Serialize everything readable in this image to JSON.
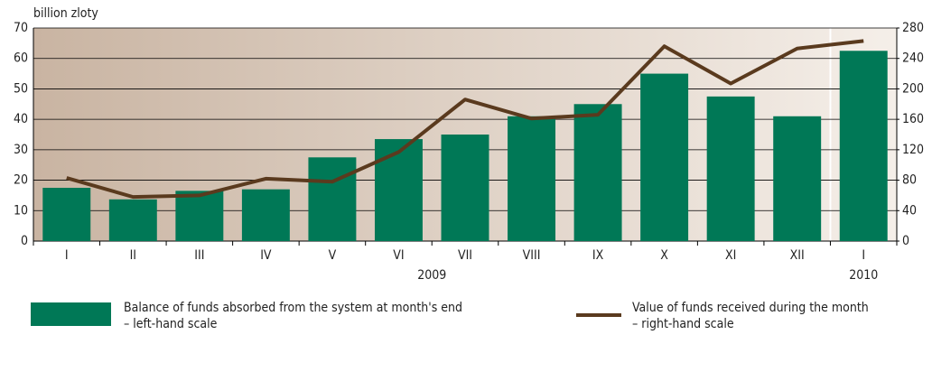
{
  "chart_data": {
    "type": "bar_line",
    "y_axis_label": "billion zloty",
    "categories": [
      "I",
      "II",
      "III",
      "IV",
      "V",
      "VI",
      "VII",
      "VIII",
      "IX",
      "X",
      "XI",
      "XII",
      "I"
    ],
    "years": [
      "2009",
      "2010"
    ],
    "series": [
      {
        "name": "Balance of funds absorbed from the system at month's end",
        "note": "– left-hand scale",
        "type": "bar",
        "axis": "y",
        "color": "#007856",
        "values": [
          17.5,
          13.7,
          16.5,
          17,
          27.5,
          33.5,
          35,
          41,
          45,
          55,
          47.5,
          41,
          62.5
        ]
      },
      {
        "name": "Value of funds received during the month",
        "note": "– right-hand scale",
        "type": "line",
        "axis": "y2",
        "color": "#5a3a1e",
        "values": [
          83,
          58,
          60,
          82,
          78,
          117,
          186,
          161,
          166,
          256,
          207,
          253,
          263
        ]
      }
    ],
    "ylim": [
      0,
      70
    ],
    "yticks": [
      0,
      10,
      20,
      30,
      40,
      50,
      60,
      70
    ],
    "y2lim": [
      0,
      280
    ],
    "y2ticks": [
      0,
      40,
      80,
      120,
      160,
      200,
      240,
      280
    ],
    "grid": true
  }
}
